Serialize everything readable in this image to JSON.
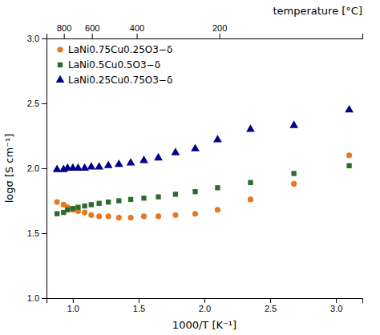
{
  "chart_data": {
    "type": "scatter",
    "xlabel": "1000/T [K⁻¹]",
    "ylabel": "logσ [S cm⁻¹]",
    "x2label": "temperature [°C]",
    "xlim": [
      0.8,
      3.2
    ],
    "ylim": [
      1.0,
      3.0
    ],
    "xticks": [
      {
        "value": 1.0,
        "label": "1.0"
      },
      1.5,
      {
        "value": 2.0,
        "label": "2.0"
      },
      2.5,
      {
        "value": 3.0,
        "label": "3.0"
      }
    ],
    "yticks": [
      {
        "value": 1.0,
        "label": "1.0"
      },
      1.5,
      {
        "value": 2.0,
        "label": "2.0"
      },
      2.5,
      {
        "value": 3.0,
        "label": "3.0"
      }
    ],
    "x2lim": [
      0.8,
      3.2
    ],
    "x2ticks": [
      {
        "value": 0.9318362,
        "label": "800"
      },
      {
        "value": 1.1452786,
        "label": "600"
      },
      {
        "value": 1.485553,
        "label": "400"
      },
      {
        "value": 2.1134947,
        "label": "200"
      }
    ],
    "grid": false,
    "legend": "upper left",
    "series": [
      {
        "name": "LaNi0.75Cu0.25O3−δ",
        "color": "#E87722",
        "marker": "circle",
        "x": [
          0.88,
          0.93,
          0.96,
          1.0,
          1.04,
          1.09,
          1.14,
          1.2,
          1.27,
          1.35,
          1.44,
          1.54,
          1.65,
          1.78,
          1.93,
          2.1,
          2.35,
          2.68,
          3.1
        ],
        "values": [
          1.74,
          1.72,
          1.7,
          1.68,
          1.67,
          1.66,
          1.64,
          1.63,
          1.63,
          1.62,
          1.62,
          1.63,
          1.63,
          1.64,
          1.65,
          1.68,
          1.76,
          1.88,
          2.1
        ]
      },
      {
        "name": "LaNi0.5Cu0.5O3−δ",
        "color": "#2D6A2D",
        "marker": "square",
        "x": [
          0.88,
          0.93,
          0.96,
          1.0,
          1.04,
          1.09,
          1.14,
          1.2,
          1.27,
          1.35,
          1.44,
          1.54,
          1.65,
          1.78,
          1.93,
          2.1,
          2.35,
          2.68,
          3.1
        ],
        "values": [
          1.65,
          1.66,
          1.68,
          1.69,
          1.7,
          1.71,
          1.72,
          1.73,
          1.74,
          1.75,
          1.76,
          1.77,
          1.78,
          1.8,
          1.82,
          1.85,
          1.89,
          1.96,
          2.02
        ]
      },
      {
        "name": "LaNi0.25Cu0.75O3−δ",
        "color": "#00008B",
        "marker": "triangle-up",
        "x": [
          0.88,
          0.93,
          0.96,
          1.0,
          1.04,
          1.09,
          1.14,
          1.2,
          1.27,
          1.35,
          1.44,
          1.54,
          1.65,
          1.78,
          1.93,
          2.1,
          2.35,
          2.68,
          3.1
        ],
        "values": [
          1.99,
          1.99,
          2.0,
          2.0,
          2.0,
          2.0,
          2.01,
          2.01,
          2.02,
          2.03,
          2.04,
          2.06,
          2.08,
          2.12,
          2.15,
          2.22,
          2.3,
          2.33,
          2.45
        ]
      }
    ]
  }
}
